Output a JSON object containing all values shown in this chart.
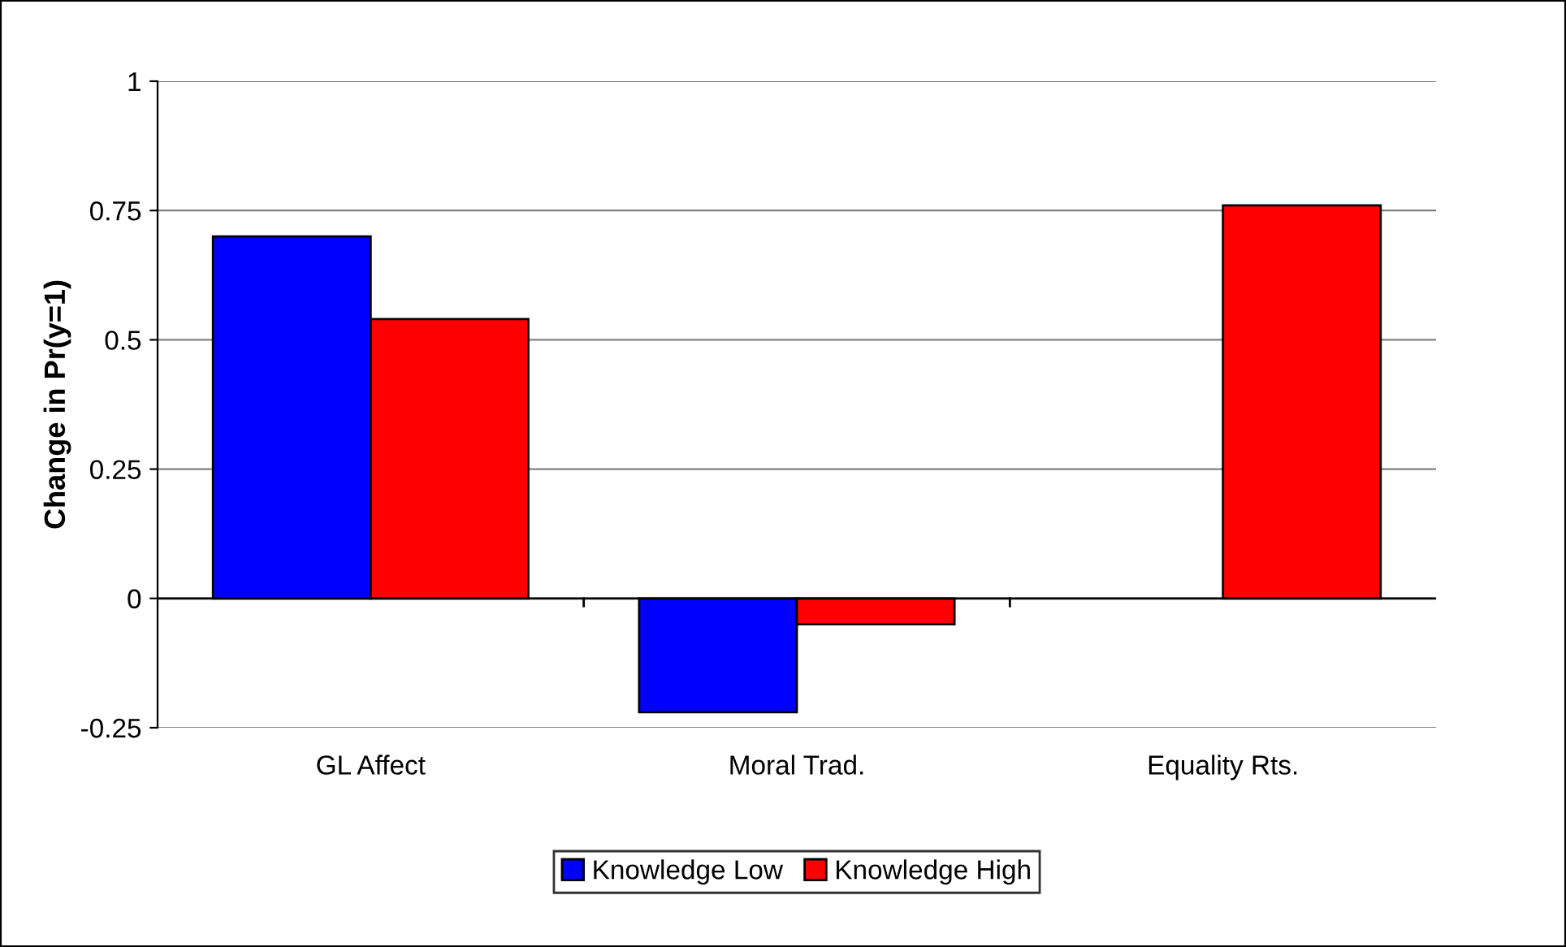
{
  "chart_data": {
    "type": "bar",
    "ylabel": "Change in Pr(y=1)",
    "categories": [
      "GL Affect",
      "Moral Trad.",
      "Equality Rts."
    ],
    "series": [
      {
        "name": "Knowledge Low",
        "color": "#0000ff",
        "values": [
          0.7,
          -0.22,
          null
        ]
      },
      {
        "name": "Knowledge High",
        "color": "#ff0000",
        "values": [
          0.54,
          -0.05,
          0.76
        ]
      }
    ],
    "ylim": [
      -0.25,
      1
    ],
    "yticks": [
      -0.25,
      0,
      0.25,
      0.5,
      0.75,
      1
    ],
    "grid": "y",
    "legend": "bottom"
  }
}
